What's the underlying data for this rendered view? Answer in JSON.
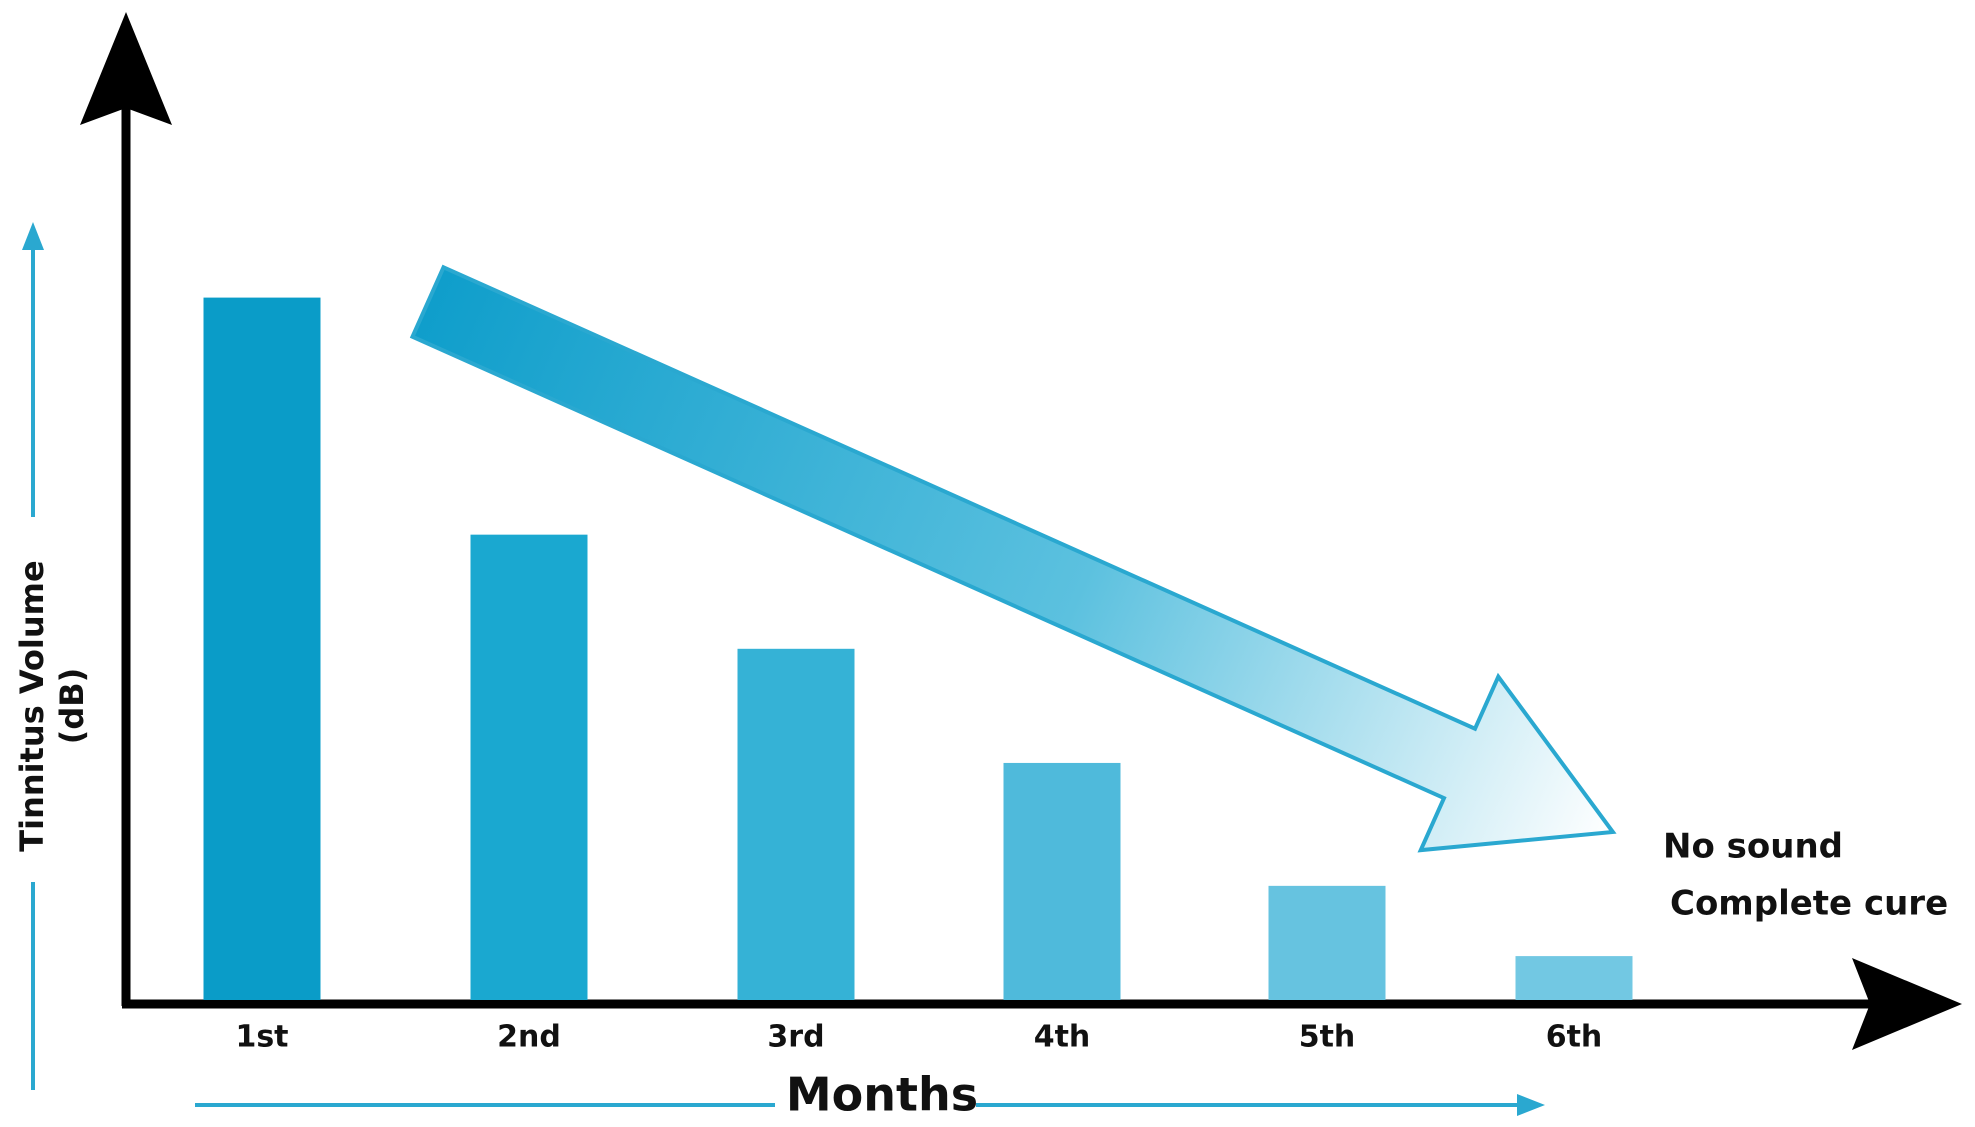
{
  "chart_data": {
    "type": "bar",
    "categories": [
      "1st",
      "2nd",
      "3rd",
      "4th",
      "5th",
      "6th"
    ],
    "values": [
      80,
      53,
      40,
      27,
      13,
      5
    ],
    "colors": [
      "#0a9cc8",
      "#1aa8d0",
      "#35b2d6",
      "#4fbadb",
      "#66c3e0",
      "#72c8e3"
    ],
    "ylim": [
      0,
      100
    ],
    "x_label": "Months",
    "y_label": [
      "Tinnitus Volume",
      "(dB)"
    ],
    "annotations": [
      "No sound",
      "Complete cure"
    ]
  }
}
